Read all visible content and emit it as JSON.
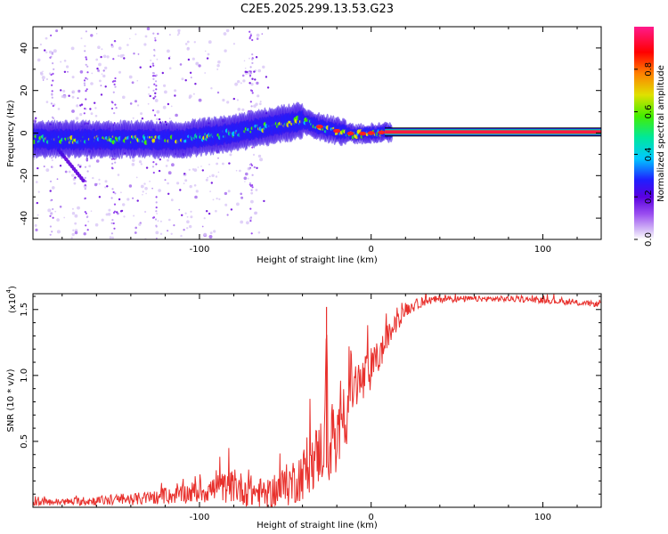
{
  "figure_title": "C2E5.2025.299.13.53.G23",
  "chart_data": [
    {
      "id": "spectrogram",
      "type": "heatmap",
      "title": "",
      "xlabel": "Height of straight line (km)",
      "ylabel": "Frequency (Hz)",
      "xlim": [
        -197,
        134
      ],
      "ylim": [
        -50,
        50
      ],
      "xticks": [
        -100,
        0,
        100
      ],
      "xtick_labels": [
        "-100",
        "0",
        "100"
      ],
      "yticks": [
        -40,
        -20,
        0,
        20,
        40
      ],
      "ytick_labels": [
        "-40",
        "-20",
        "0",
        "20",
        "40"
      ],
      "colorbar": {
        "label": "Normalized spectral amplitude",
        "range": [
          0,
          1
        ],
        "ticks": [
          0.0,
          0.2,
          0.4,
          0.6,
          0.8
        ],
        "tick_labels": [
          "0.0",
          "0.2",
          "0.4",
          "0.6",
          "0.8"
        ],
        "stops": [
          "#ffffff",
          "#d9c3f7",
          "#9a4df0",
          "#5a00e0",
          "#1f1fff",
          "#00c8ff",
          "#00e89a",
          "#44ee00",
          "#e0e000",
          "#ff8000",
          "#ff0000",
          "#ff1a8c"
        ]
      },
      "ridge_center": [
        [
          -197,
          -3
        ],
        [
          -150,
          -3
        ],
        [
          -110,
          -3
        ],
        [
          -80,
          0
        ],
        [
          -60,
          3
        ],
        [
          -40,
          6
        ],
        [
          -30,
          3
        ],
        [
          -20,
          1
        ],
        [
          -10,
          -0.5
        ],
        [
          0,
          0
        ],
        [
          10,
          0.5
        ],
        [
          134,
          0.5
        ]
      ]
    },
    {
      "id": "snr",
      "type": "line",
      "title": "",
      "xlabel": "Height of straight line (km)",
      "ylabel": "SNR (10 * v/v)",
      "y_multiplier_label": "(x10",
      "y_multiplier_exp": "4",
      "y_multiplier_close": ")",
      "xlim": [
        -197,
        134
      ],
      "ylim": [
        0,
        1.62
      ],
      "xticks": [
        -100,
        0,
        100
      ],
      "xtick_labels": [
        "-100",
        "0",
        "100"
      ],
      "yticks": [
        0.5,
        1.0,
        1.5
      ],
      "ytick_labels": [
        "0.5",
        "1.0",
        "1.5"
      ],
      "series": [
        {
          "name": "SNR",
          "color": "#e8302c",
          "x": [
            -197,
            -180,
            -160,
            -140,
            -120,
            -100,
            -90,
            -80,
            -70,
            -60,
            -50,
            -45,
            -40,
            -35,
            -30,
            -27,
            -26,
            -25,
            -22,
            -20,
            -17,
            -15,
            -12,
            -10,
            -5,
            0,
            5,
            10,
            20,
            30,
            40,
            60,
            80,
            100,
            120,
            134
          ],
          "values": [
            0.04,
            0.04,
            0.05,
            0.06,
            0.08,
            0.12,
            0.14,
            0.16,
            0.12,
            0.1,
            0.16,
            0.2,
            0.25,
            0.33,
            0.42,
            0.48,
            1.52,
            0.25,
            0.65,
            0.28,
            0.9,
            0.65,
            0.95,
            0.9,
            0.95,
            1.05,
            1.15,
            1.3,
            1.5,
            1.56,
            1.58,
            1.58,
            1.58,
            1.57,
            1.55,
            1.54
          ],
          "noise": [
            0.015,
            0.015,
            0.02,
            0.025,
            0.03,
            0.05,
            0.06,
            0.07,
            0.07,
            0.06,
            0.09,
            0.1,
            0.11,
            0.12,
            0.14,
            0.15,
            0.0,
            0.12,
            0.15,
            0.12,
            0.15,
            0.14,
            0.14,
            0.13,
            0.11,
            0.09,
            0.07,
            0.05,
            0.03,
            0.02,
            0.015,
            0.012,
            0.012,
            0.012,
            0.012,
            0.012
          ]
        }
      ]
    }
  ]
}
